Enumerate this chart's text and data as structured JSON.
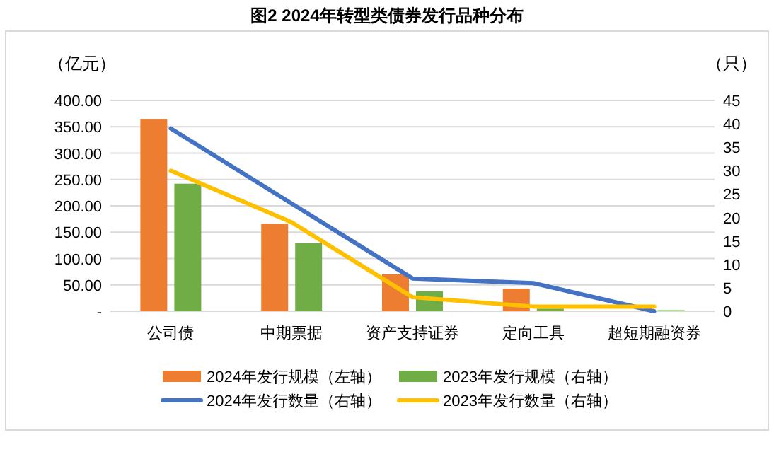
{
  "chart_data": {
    "type": "bar",
    "title": "图2 2024年转型类债券发行品种分布",
    "ylabel": "（亿元）",
    "y2label": "（只）",
    "categories": [
      "公司债",
      "中期票据",
      "资产支持证券",
      "定向工具",
      "超短期融资券"
    ],
    "series": [
      {
        "name": "2024年发行规模（左轴）",
        "color": "#ed7d31",
        "values": [
          365,
          166,
          70,
          43,
          0
        ]
      },
      {
        "name": "2023年发行规模（右轴）",
        "color": "#70ad47",
        "values": [
          242,
          129,
          38,
          5,
          2
        ]
      },
      {
        "name": "2024年发行数量（右轴）",
        "type": "line",
        "axis": "y2",
        "color": "#4472c4",
        "values": [
          39,
          23,
          7,
          6,
          0
        ]
      },
      {
        "name": "2023年发行数量（右轴）",
        "type": "line",
        "axis": "y2",
        "color": "#ffc000",
        "values": [
          30,
          19,
          3,
          1,
          1
        ]
      }
    ],
    "ylim": [
      0,
      400
    ],
    "yticks": [
      {
        "value": 0,
        "label": "-"
      },
      {
        "value": 50,
        "label": "50.00"
      },
      {
        "value": 100,
        "label": "100.00"
      },
      {
        "value": 150,
        "label": "150.00"
      },
      {
        "value": 200,
        "label": "200.00"
      },
      {
        "value": 250,
        "label": "250.00"
      },
      {
        "value": 300,
        "label": "300.00"
      },
      {
        "value": 350,
        "label": "350.00"
      },
      {
        "value": 400,
        "label": "400.00"
      }
    ],
    "y2lim": [
      0,
      45
    ],
    "y2ticks": [
      0,
      5,
      10,
      15,
      20,
      25,
      30,
      35,
      40,
      45
    ],
    "grid": "y",
    "legend": "bottom",
    "marker": "none",
    "line_style": "solid"
  }
}
